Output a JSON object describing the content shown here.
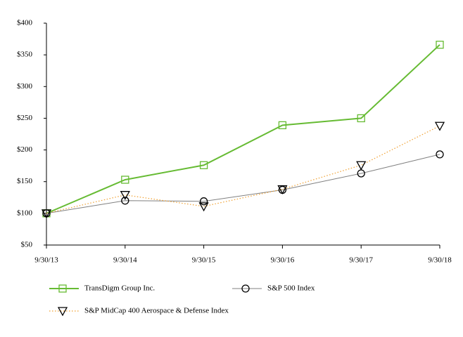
{
  "chart_data": {
    "type": "line",
    "categories": [
      "9/30/13",
      "9/30/14",
      "9/30/15",
      "9/30/16",
      "9/30/17",
      "9/30/18"
    ],
    "series": [
      {
        "name": "TransDigm Group Inc.",
        "color": "#66bb33",
        "marker": "square",
        "marker_color": "#66bb33",
        "line_style": "solid",
        "line_width": 2,
        "values": [
          100,
          153,
          176,
          239,
          250,
          366
        ]
      },
      {
        "name": "S&P 500 Index",
        "color": "#808080",
        "marker": "circle",
        "marker_color": "#000000",
        "line_style": "solid",
        "line_width": 1,
        "values": [
          100,
          120,
          119,
          137,
          163,
          193
        ]
      },
      {
        "name": "S&P MidCap 400 Aerospace & Defense Index",
        "color": "#f0a030",
        "marker": "triangle-down",
        "marker_color": "#000000",
        "line_style": "dotted",
        "line_width": 1.2,
        "values": [
          100,
          129,
          111,
          138,
          176,
          238
        ]
      }
    ],
    "ylim": [
      50,
      400
    ],
    "yticks": [
      {
        "value": 50,
        "label": "$50"
      },
      {
        "value": 100,
        "label": "$100"
      },
      {
        "value": 150,
        "label": "$150"
      },
      {
        "value": 200,
        "label": "$200"
      },
      {
        "value": 250,
        "label": "$250"
      },
      {
        "value": 300,
        "label": "$300"
      },
      {
        "value": 350,
        "label": "$350"
      },
      {
        "value": 400,
        "label": "$400"
      }
    ],
    "grid": false
  }
}
